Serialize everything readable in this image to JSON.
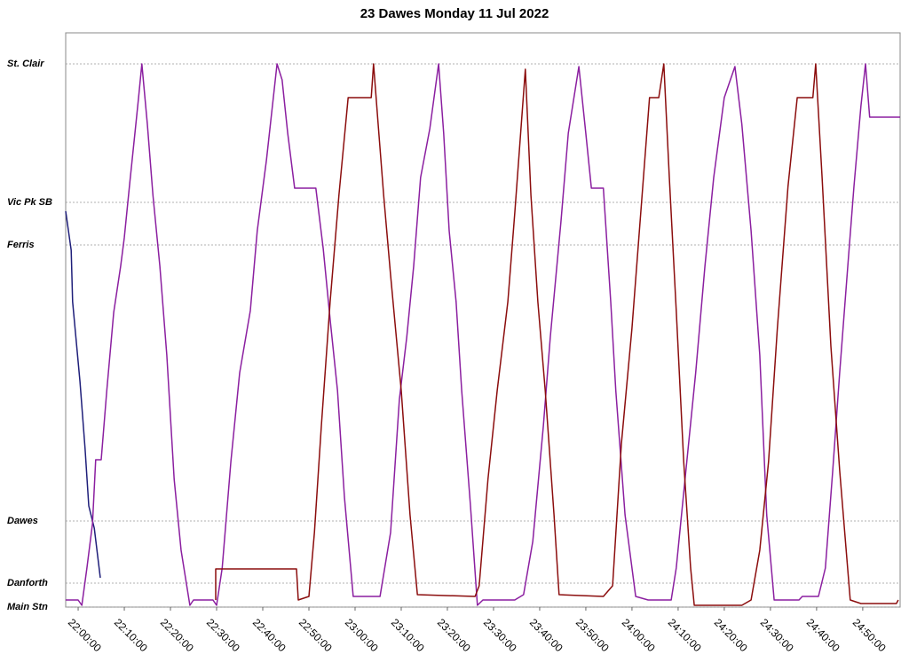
{
  "chart_data": {
    "type": "line",
    "title": "23 Dawes Monday 11 Jul 2022",
    "xlim": [
      -2.7,
      178.1
    ],
    "ylim": [
      0,
      64.7
    ],
    "grid": true,
    "xticks": [
      {
        "value": 0,
        "label": "22:00:00"
      },
      {
        "value": 10,
        "label": "22:10:00"
      },
      {
        "value": 20,
        "label": "22:20:00"
      },
      {
        "value": 30,
        "label": "22:30:00"
      },
      {
        "value": 40,
        "label": "22:40:00"
      },
      {
        "value": 50,
        "label": "22:50:00"
      },
      {
        "value": 60,
        "label": "23:00:00"
      },
      {
        "value": 70,
        "label": "23:10:00"
      },
      {
        "value": 80,
        "label": "23:20:00"
      },
      {
        "value": 90,
        "label": "23:30:00"
      },
      {
        "value": 100,
        "label": "23:40:00"
      },
      {
        "value": 110,
        "label": "23:50:00"
      },
      {
        "value": 120,
        "label": "24:00:00"
      },
      {
        "value": 130,
        "label": "24:10:00"
      },
      {
        "value": 140,
        "label": "24:20:00"
      },
      {
        "value": 150,
        "label": "24:30:00"
      },
      {
        "value": 160,
        "label": "24:40:00"
      },
      {
        "value": 170,
        "label": "24:50:00"
      }
    ],
    "yticks": [
      {
        "value": 0,
        "label": "Main Stn"
      },
      {
        "value": 2.7,
        "label": "Danforth"
      },
      {
        "value": 9.7,
        "label": "Dawes"
      },
      {
        "value": 40.8,
        "label": "Ferris"
      },
      {
        "value": 45.6,
        "label": "Vic Pk SB"
      },
      {
        "value": 61.2,
        "label": "St. Clair"
      }
    ],
    "series": [
      {
        "color": "#1f1f7a",
        "x": [
          -2.7,
          -1.5,
          -1.2,
          0.4,
          1.5,
          2.3,
          3.5,
          4.8
        ],
        "values": [
          44.6,
          40.2,
          34.4,
          25.4,
          17.9,
          11.4,
          8.9,
          3.3
        ]
      },
      {
        "color": "#8b1fa0",
        "x": [
          -2.7,
          0,
          0.8,
          1.9,
          3.1,
          3.8,
          5,
          6.2,
          7.7,
          9.2,
          10,
          11.2,
          12.3,
          13.1,
          13.8,
          15,
          16.2,
          17.7,
          19.2,
          20.8,
          22.3,
          24.2,
          25,
          29.2,
          30,
          31.2,
          33.1,
          35,
          37.3,
          38.8,
          40.8,
          43.1,
          44.2,
          45.4,
          46.9,
          51.5,
          53.1,
          54.6,
          56.2,
          57.7,
          59.6,
          65.4,
          67.7,
          69.6,
          71.2,
          72.7,
          74.2,
          76.2,
          78.1,
          79.2,
          80.4,
          81.9,
          83.1,
          85,
          86.5,
          87.7,
          94.6,
          96.5,
          98.5,
          100.8,
          102.3,
          104.6,
          106.2,
          108.5,
          110,
          111.2,
          113.8,
          115.4,
          116.5,
          118.5,
          120.8,
          123.5,
          128.5,
          129.6,
          131.5,
          133.8,
          135.8,
          137.7,
          140,
          142.3,
          143.8,
          145.8,
          147.7,
          149.2,
          150.8,
          156.2,
          156.9,
          160.4,
          161.9,
          163.5,
          165,
          166.9,
          168.1,
          169.6,
          170.6,
          171.5,
          178.1
        ],
        "values": [
          0.8,
          0.8,
          0.2,
          4.4,
          9.4,
          16.6,
          16.6,
          24.4,
          33.2,
          38.4,
          41.6,
          47.9,
          53.4,
          57.4,
          61.2,
          54.4,
          46.4,
          38.4,
          28.4,
          14.4,
          6.4,
          0.2,
          0.8,
          0.8,
          0.2,
          4.4,
          16.4,
          26.4,
          33.4,
          42.4,
          50.4,
          61.2,
          59.4,
          53.4,
          47.2,
          47.2,
          40.4,
          32.4,
          24.4,
          12.4,
          1.2,
          1.2,
          8.4,
          23.4,
          30.4,
          38.4,
          48.4,
          53.9,
          61.2,
          53.4,
          42.4,
          34.4,
          24.4,
          11.4,
          0.2,
          0.8,
          0.8,
          1.4,
          7.4,
          20.4,
          30.4,
          43.4,
          53.4,
          60.9,
          53.4,
          47.2,
          47.2,
          34.4,
          24.4,
          10.4,
          1.2,
          0.8,
          0.8,
          4.4,
          14.4,
          26.4,
          38.4,
          48.4,
          57.4,
          60.9,
          54.4,
          42.4,
          28.4,
          10.4,
          0.8,
          0.8,
          1.2,
          1.2,
          4.4,
          15.4,
          26.4,
          39.4,
          47.4,
          56.4,
          61.2,
          55.2,
          55.2
        ]
      },
      {
        "color": "#8b0d0d",
        "x": [
          29.8,
          29.8,
          47.3,
          47.7,
          50,
          51.2,
          52.7,
          54.6,
          56.5,
          58.5,
          63.5,
          64,
          65,
          66.2,
          67.7,
          70,
          71.9,
          73.5,
          86,
          86.9,
          88.8,
          90.8,
          93.1,
          94.6,
          96.9,
          98.1,
          99.6,
          101.2,
          103.1,
          104.2,
          113.8,
          115.8,
          117.7,
          120,
          121.9,
          123.8,
          125.8,
          126.9,
          128.1,
          129.6,
          131.2,
          132.7,
          133.5,
          143.8,
          145.8,
          147.7,
          149.6,
          151.5,
          153.8,
          155.8,
          159.2,
          159.8,
          161.2,
          163.1,
          165,
          167.3,
          169.6,
          177.3,
          177.7
        ],
        "values": [
          0.8,
          4.3,
          4.3,
          0.8,
          1.2,
          8.4,
          20.4,
          34.4,
          46.4,
          57.4,
          57.4,
          61.2,
          54.4,
          46.4,
          37.4,
          24.4,
          10.4,
          1.4,
          1.2,
          2.4,
          14.4,
          24.4,
          34.4,
          44.4,
          60.6,
          46.4,
          34.4,
          24.4,
          10.4,
          1.4,
          1.2,
          2.4,
          18.4,
          31.4,
          44.4,
          57.4,
          57.4,
          61.2,
          48.4,
          33.4,
          16.4,
          4.4,
          0.2,
          0.2,
          0.8,
          6.4,
          16.4,
          31.4,
          47.4,
          57.4,
          57.4,
          61.2,
          48.4,
          29.4,
          15.4,
          0.8,
          0.4,
          0.4,
          0.8
        ]
      }
    ]
  }
}
